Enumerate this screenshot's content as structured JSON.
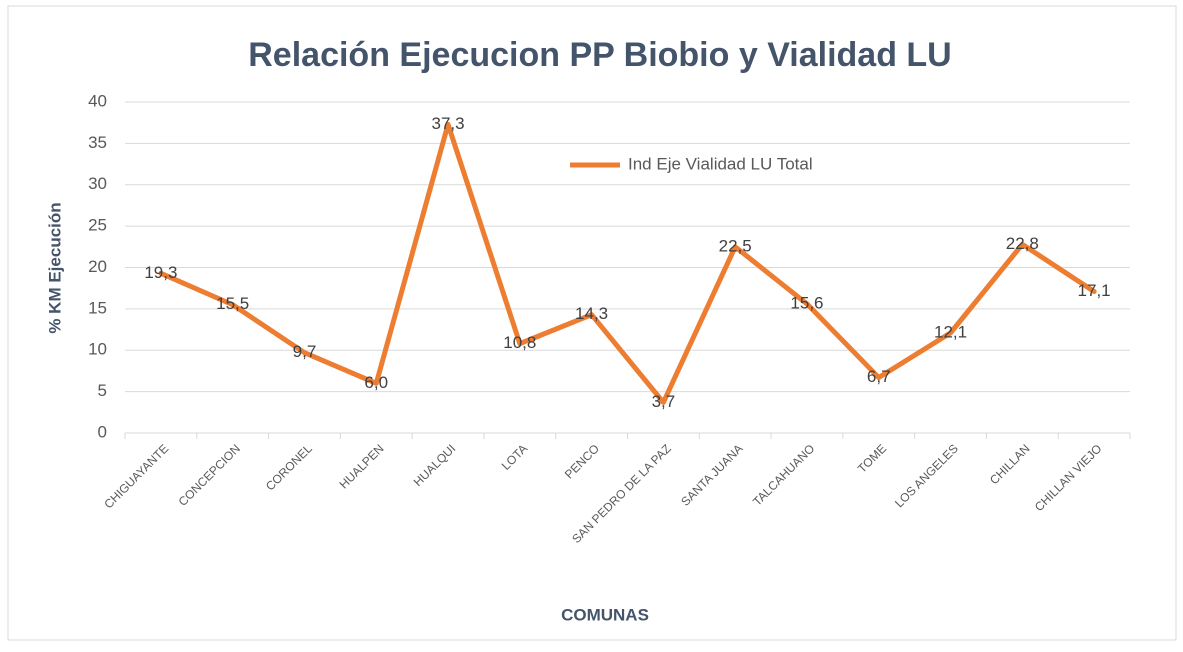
{
  "chart_data": {
    "type": "line",
    "title": "Relación Ejecucion PP Biobio y Vialidad LU",
    "x_label": "COMUNAS",
    "y_label": "% KM Ejecución",
    "categories": [
      "CHIGUAYANTE",
      "CONCEPCION",
      "CORONEL",
      "HUALPEN",
      "HUALQUI",
      "LOTA",
      "PENCO",
      "SAN PEDRO DE LA PAZ",
      "SANTA JUANA",
      "TALCAHUANO",
      "TOME",
      "LOS ANGELES",
      "CHILLAN",
      "CHILLAN VIEJO"
    ],
    "series": [
      {
        "name": "Ind Eje Vialidad LU Total",
        "color": "#ed7d31",
        "values": [
          19.3,
          15.5,
          9.7,
          6.0,
          37.3,
          10.8,
          14.3,
          3.7,
          22.5,
          15.6,
          6.7,
          12.1,
          22.8,
          17.1
        ],
        "value_labels": [
          "19,3",
          "15,5",
          "9,7",
          "6,0",
          "37,3",
          "10,8",
          "14,3",
          "3,7",
          "22,5",
          "15,6",
          "6,7",
          "12,1",
          "22,8",
          "17,1"
        ]
      }
    ],
    "ylim": [
      0,
      40
    ],
    "yticks": [
      0,
      5,
      10,
      15,
      20,
      25,
      30,
      35,
      40
    ],
    "grid": true
  }
}
